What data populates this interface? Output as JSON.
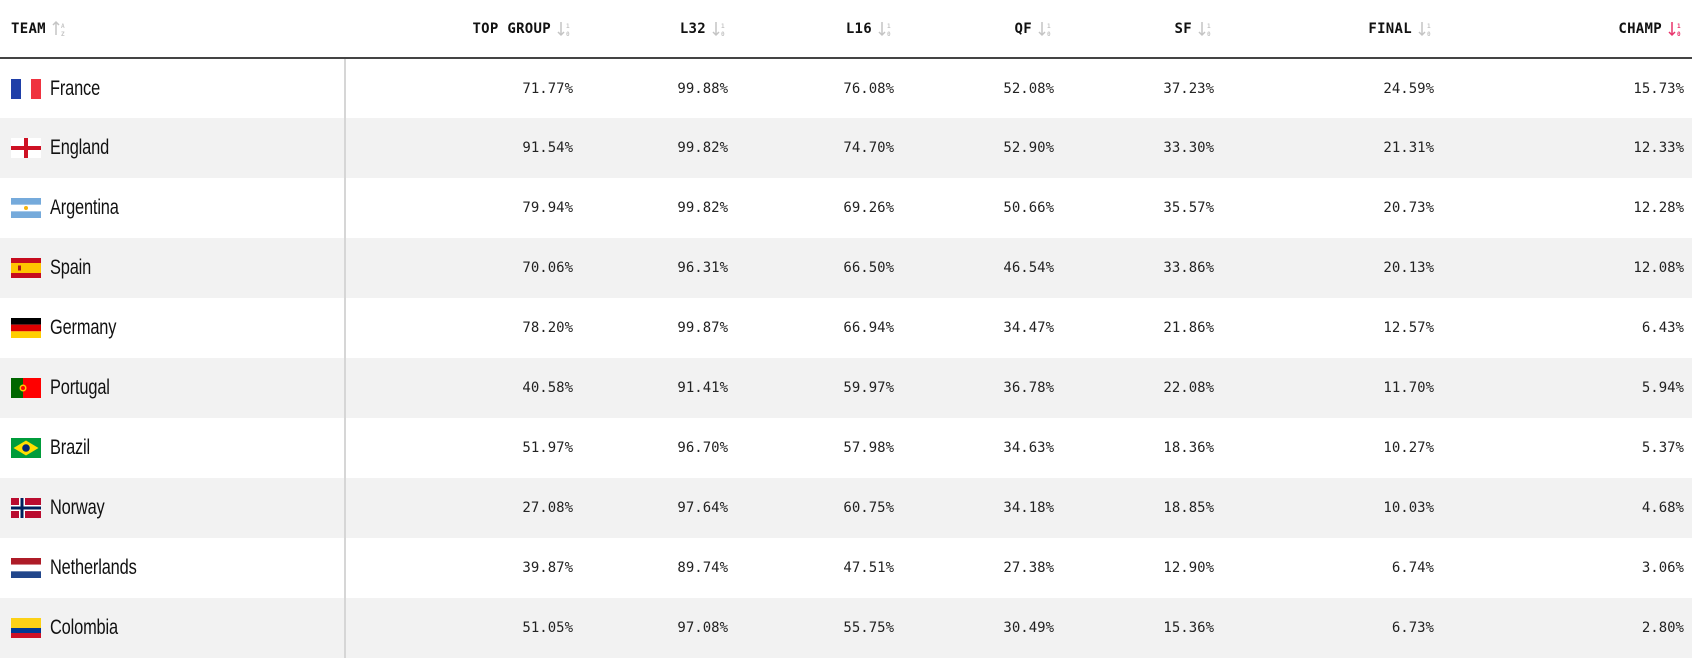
{
  "columns": {
    "team": "TEAM",
    "top_group": "TOP GROUP",
    "l32": "L32",
    "l16": "L16",
    "qf": "QF",
    "sf": "SF",
    "final": "FINAL",
    "champ": "CHAMP"
  },
  "sort": {
    "active_column": "champ",
    "active_color": "#e8336b",
    "inactive_color": "#c4c4c4"
  },
  "rows": [
    {
      "team": "France",
      "flag": "france-flag",
      "top_group": "71.77%",
      "l32": "99.88%",
      "l16": "76.08%",
      "qf": "52.08%",
      "sf": "37.23%",
      "final": "24.59%",
      "champ": "15.73%"
    },
    {
      "team": "England",
      "flag": "england-flag",
      "top_group": "91.54%",
      "l32": "99.82%",
      "l16": "74.70%",
      "qf": "52.90%",
      "sf": "33.30%",
      "final": "21.31%",
      "champ": "12.33%"
    },
    {
      "team": "Argentina",
      "flag": "argentina-flag",
      "top_group": "79.94%",
      "l32": "99.82%",
      "l16": "69.26%",
      "qf": "50.66%",
      "sf": "35.57%",
      "final": "20.73%",
      "champ": "12.28%"
    },
    {
      "team": "Spain",
      "flag": "spain-flag",
      "top_group": "70.06%",
      "l32": "96.31%",
      "l16": "66.50%",
      "qf": "46.54%",
      "sf": "33.86%",
      "final": "20.13%",
      "champ": "12.08%"
    },
    {
      "team": "Germany",
      "flag": "germany-flag",
      "top_group": "78.20%",
      "l32": "99.87%",
      "l16": "66.94%",
      "qf": "34.47%",
      "sf": "21.86%",
      "final": "12.57%",
      "champ": "6.43%"
    },
    {
      "team": "Portugal",
      "flag": "portugal-flag",
      "top_group": "40.58%",
      "l32": "91.41%",
      "l16": "59.97%",
      "qf": "36.78%",
      "sf": "22.08%",
      "final": "11.70%",
      "champ": "5.94%"
    },
    {
      "team": "Brazil",
      "flag": "brazil-flag",
      "top_group": "51.97%",
      "l32": "96.70%",
      "l16": "57.98%",
      "qf": "34.63%",
      "sf": "18.36%",
      "final": "10.27%",
      "champ": "5.37%"
    },
    {
      "team": "Norway",
      "flag": "norway-flag",
      "top_group": "27.08%",
      "l32": "97.64%",
      "l16": "60.75%",
      "qf": "34.18%",
      "sf": "18.85%",
      "final": "10.03%",
      "champ": "4.68%"
    },
    {
      "team": "Netherlands",
      "flag": "netherlands-flag",
      "top_group": "39.87%",
      "l32": "89.74%",
      "l16": "47.51%",
      "qf": "27.38%",
      "sf": "12.90%",
      "final": "6.74%",
      "champ": "3.06%"
    },
    {
      "team": "Colombia",
      "flag": "colombia-flag",
      "top_group": "51.05%",
      "l32": "97.08%",
      "l16": "55.75%",
      "qf": "30.49%",
      "sf": "15.36%",
      "final": "6.73%",
      "champ": "2.80%"
    }
  ]
}
